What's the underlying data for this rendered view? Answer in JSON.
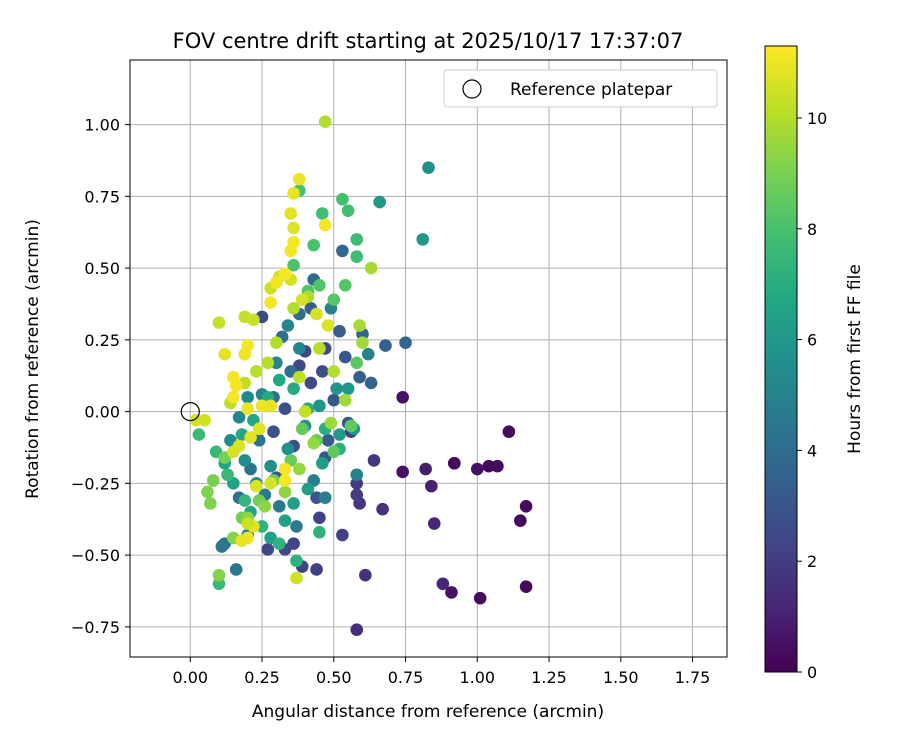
{
  "chart_data": {
    "type": "scatter",
    "title": "FOV centre drift starting at 2025/10/17 17:37:07",
    "xlabel": "Angular distance from reference (arcmin)",
    "ylabel": "Rotation from reference (arcmin)",
    "xlim": [
      -0.21,
      1.87
    ],
    "ylim": [
      -0.855,
      1.225
    ],
    "xticks": [
      "0.00",
      "0.25",
      "0.50",
      "0.75",
      "1.00",
      "1.25",
      "1.50",
      "1.75"
    ],
    "yticks": [
      "1.00",
      "0.75",
      "0.50",
      "0.25",
      "0.00",
      "−0.25",
      "−0.50",
      "−0.75"
    ],
    "grid": true,
    "legend": {
      "label": "Reference platepar",
      "placement": "top-right"
    },
    "reference_point": {
      "x": 0.0,
      "y": 0.0
    },
    "colorbar": {
      "label": "Hours from first FF file",
      "min": 0,
      "max": 11.3,
      "ticks": [
        "0",
        "2",
        "4",
        "6",
        "8",
        "10"
      ],
      "colormap": "viridis"
    },
    "points": [
      [
        0.92,
        -0.18,
        0.3
      ],
      [
        1.01,
        -0.65,
        0.3
      ],
      [
        1.04,
        -0.19,
        0.3
      ],
      [
        1.07,
        -0.19,
        0.3
      ],
      [
        1.11,
        -0.07,
        0.3
      ],
      [
        1.15,
        -0.38,
        0.3
      ],
      [
        1.17,
        -0.33,
        0.3
      ],
      [
        1.17,
        -0.61,
        0.3
      ],
      [
        0.74,
        -0.21,
        0.5
      ],
      [
        0.74,
        0.05,
        0.5
      ],
      [
        0.91,
        -0.63,
        0.5
      ],
      [
        1.0,
        -0.2,
        0.5
      ],
      [
        0.82,
        -0.2,
        0.9
      ],
      [
        0.84,
        -0.26,
        1.0
      ],
      [
        0.85,
        -0.39,
        1.2
      ],
      [
        0.88,
        -0.6,
        1.2
      ],
      [
        0.92,
        -0.18,
        0.3
      ],
      [
        0.58,
        -0.76,
        1.5
      ],
      [
        0.61,
        -0.57,
        1.6
      ],
      [
        0.67,
        -0.34,
        1.6
      ],
      [
        0.59,
        -0.32,
        1.8
      ],
      [
        0.64,
        -0.17,
        1.8
      ],
      [
        0.58,
        -0.25,
        1.9
      ],
      [
        0.58,
        -0.29,
        2.0
      ],
      [
        0.56,
        -0.07,
        2.0
      ],
      [
        0.53,
        -0.43,
        2.1
      ],
      [
        0.45,
        -0.37,
        2.2
      ],
      [
        0.44,
        -0.55,
        2.2
      ],
      [
        0.39,
        -0.54,
        2.2
      ],
      [
        0.36,
        -0.46,
        2.3
      ],
      [
        0.33,
        -0.48,
        2.3
      ],
      [
        0.27,
        -0.48,
        2.4
      ],
      [
        0.4,
        0.21,
        2.4
      ],
      [
        0.47,
        0.22,
        2.5
      ],
      [
        0.25,
        0.33,
        2.5
      ],
      [
        0.38,
        0.16,
        2.6
      ],
      [
        0.42,
        0.1,
        2.6
      ],
      [
        0.46,
        0.14,
        2.7
      ],
      [
        0.33,
        0.01,
        2.7
      ],
      [
        0.29,
        -0.07,
        2.8
      ],
      [
        0.36,
        -0.12,
        2.8
      ],
      [
        0.3,
        -0.23,
        2.9
      ],
      [
        0.44,
        -0.3,
        3.0
      ],
      [
        0.47,
        -0.16,
        3.0
      ],
      [
        0.54,
        0.19,
        3.1
      ],
      [
        0.5,
        0.04,
        3.1
      ],
      [
        0.55,
        -0.04,
        3.2
      ],
      [
        0.48,
        -0.1,
        3.2
      ],
      [
        0.42,
        0.36,
        3.3
      ],
      [
        0.52,
        0.28,
        3.3
      ],
      [
        0.59,
        0.12,
        3.4
      ],
      [
        0.68,
        0.23,
        3.5
      ],
      [
        0.75,
        0.24,
        3.6
      ],
      [
        0.63,
        0.1,
        3.6
      ],
      [
        0.6,
        0.27,
        3.7
      ],
      [
        0.53,
        0.56,
        3.8
      ],
      [
        0.43,
        0.46,
        3.9
      ],
      [
        0.38,
        0.34,
        4.0
      ],
      [
        0.32,
        0.26,
        4.0
      ],
      [
        0.35,
        0.14,
        4.1
      ],
      [
        0.29,
        0.05,
        4.1
      ],
      [
        0.24,
        -0.1,
        4.2
      ],
      [
        0.21,
        -0.2,
        4.3
      ],
      [
        0.17,
        -0.3,
        4.3
      ],
      [
        0.11,
        -0.47,
        4.4
      ],
      [
        0.12,
        -0.46,
        4.4
      ],
      [
        0.16,
        -0.55,
        4.5
      ],
      [
        0.2,
        -0.43,
        4.5
      ],
      [
        0.26,
        -0.29,
        4.6
      ],
      [
        0.31,
        -0.33,
        4.6
      ],
      [
        0.37,
        -0.4,
        4.7
      ],
      [
        0.43,
        -0.24,
        4.8
      ],
      [
        0.47,
        -0.3,
        4.8
      ],
      [
        0.58,
        -0.22,
        4.9
      ],
      [
        0.62,
        0.2,
        5.0
      ],
      [
        0.49,
        0.36,
        5.0
      ],
      [
        0.38,
        0.22,
        5.1
      ],
      [
        0.34,
        0.3,
        5.1
      ],
      [
        0.3,
        0.17,
        5.2
      ],
      [
        0.25,
        0.06,
        5.2
      ],
      [
        0.2,
        0.05,
        5.3
      ],
      [
        0.17,
        -0.02,
        5.3
      ],
      [
        0.14,
        -0.1,
        5.4
      ],
      [
        0.19,
        -0.17,
        5.5
      ],
      [
        0.23,
        -0.25,
        5.5
      ],
      [
        0.28,
        -0.19,
        5.6
      ],
      [
        0.34,
        -0.13,
        5.6
      ],
      [
        0.4,
        -0.05,
        5.7
      ],
      [
        0.45,
        0.02,
        5.8
      ],
      [
        0.51,
        0.08,
        5.8
      ],
      [
        0.57,
        -0.06,
        5.9
      ],
      [
        0.66,
        0.73,
        6.0
      ],
      [
        0.81,
        0.6,
        6.0
      ],
      [
        0.83,
        0.85,
        5.5
      ],
      [
        0.55,
        0.08,
        6.1
      ],
      [
        0.52,
        -0.08,
        6.1
      ],
      [
        0.46,
        -0.18,
        6.2
      ],
      [
        0.41,
        -0.27,
        6.3
      ],
      [
        0.36,
        -0.32,
        6.3
      ],
      [
        0.33,
        -0.38,
        6.4
      ],
      [
        0.28,
        -0.44,
        6.4
      ],
      [
        0.21,
        -0.35,
        6.5
      ],
      [
        0.15,
        -0.25,
        6.5
      ],
      [
        0.12,
        -0.18,
        6.6
      ],
      [
        0.18,
        -0.08,
        6.7
      ],
      [
        0.22,
        -0.03,
        6.7
      ],
      [
        0.27,
        0.05,
        6.8
      ],
      [
        0.31,
        0.11,
        6.8
      ],
      [
        0.36,
        0.08,
        6.9
      ],
      [
        0.41,
        0.01,
        7.0
      ],
      [
        0.47,
        -0.06,
        7.0
      ],
      [
        0.52,
        -0.13,
        7.1
      ],
      [
        0.45,
        -0.42,
        7.2
      ],
      [
        0.37,
        -0.52,
        7.2
      ],
      [
        0.31,
        -0.46,
        7.3
      ],
      [
        0.25,
        -0.4,
        7.3
      ],
      [
        0.19,
        -0.31,
        7.4
      ],
      [
        0.13,
        -0.22,
        7.5
      ],
      [
        0.09,
        -0.14,
        7.5
      ],
      [
        0.03,
        -0.08,
        7.6
      ],
      [
        0.1,
        -0.6,
        7.6
      ],
      [
        0.58,
        0.6,
        7.7
      ],
      [
        0.58,
        0.54,
        7.7
      ],
      [
        0.46,
        0.69,
        7.8
      ],
      [
        0.53,
        0.74,
        7.9
      ],
      [
        0.55,
        0.7,
        7.9
      ],
      [
        0.43,
        0.58,
        8.0
      ],
      [
        0.38,
        0.77,
        8.0
      ],
      [
        0.36,
        0.51,
        8.1
      ],
      [
        0.41,
        0.42,
        8.2
      ],
      [
        0.45,
        0.44,
        8.2
      ],
      [
        0.5,
        0.39,
        8.3
      ],
      [
        0.54,
        0.44,
        8.3
      ],
      [
        0.58,
        0.17,
        8.4
      ],
      [
        0.56,
        -0.05,
        8.5
      ],
      [
        0.5,
        -0.14,
        8.5
      ],
      [
        0.44,
        -0.1,
        8.6
      ],
      [
        0.39,
        -0.06,
        8.6
      ],
      [
        0.35,
        -0.17,
        8.7
      ],
      [
        0.29,
        -0.24,
        8.8
      ],
      [
        0.24,
        -0.31,
        8.8
      ],
      [
        0.18,
        -0.37,
        8.9
      ],
      [
        0.12,
        -0.16,
        8.9
      ],
      [
        0.08,
        -0.24,
        9.0
      ],
      [
        0.06,
        -0.28,
        9.1
      ],
      [
        0.07,
        -0.32,
        9.1
      ],
      [
        0.1,
        -0.57,
        9.2
      ],
      [
        0.15,
        -0.44,
        9.2
      ],
      [
        0.2,
        -0.37,
        9.3
      ],
      [
        0.26,
        -0.33,
        9.4
      ],
      [
        0.33,
        -0.28,
        9.4
      ],
      [
        0.38,
        -0.2,
        9.5
      ],
      [
        0.43,
        -0.11,
        9.5
      ],
      [
        0.49,
        -0.04,
        9.6
      ],
      [
        0.54,
        0.04,
        9.7
      ],
      [
        0.6,
        0.24,
        9.7
      ],
      [
        0.59,
        0.3,
        9.8
      ],
      [
        0.63,
        0.5,
        9.8
      ],
      [
        0.47,
        1.01,
        10.0
      ],
      [
        0.41,
        0.4,
        9.9
      ],
      [
        0.36,
        0.36,
        10.0
      ],
      [
        0.3,
        0.24,
        10.0
      ],
      [
        0.27,
        0.17,
        10.1
      ],
      [
        0.23,
        0.14,
        10.1
      ],
      [
        0.19,
        0.1,
        10.2
      ],
      [
        0.14,
        0.03,
        10.2
      ],
      [
        0.1,
        0.31,
        10.3
      ],
      [
        0.19,
        0.33,
        10.3
      ],
      [
        0.22,
        0.32,
        10.4
      ],
      [
        0.28,
        0.43,
        10.4
      ],
      [
        0.31,
        0.47,
        10.5
      ],
      [
        0.35,
        0.46,
        10.5
      ],
      [
        0.39,
        0.39,
        10.6
      ],
      [
        0.44,
        0.34,
        10.6
      ],
      [
        0.48,
        0.3,
        10.7
      ],
      [
        0.36,
        0.64,
        10.7
      ],
      [
        0.35,
        0.69,
        10.8
      ],
      [
        0.36,
        0.76,
        10.9
      ],
      [
        0.38,
        0.81,
        11.0
      ],
      [
        0.47,
        0.65,
        11.1
      ],
      [
        0.36,
        0.59,
        11.2
      ],
      [
        0.35,
        0.56,
        11.2
      ],
      [
        0.33,
        0.48,
        11.2
      ],
      [
        0.3,
        0.45,
        11.1
      ],
      [
        0.28,
        0.38,
        11.1
      ],
      [
        0.2,
        0.23,
        11.1
      ],
      [
        0.19,
        0.2,
        11.0
      ],
      [
        0.12,
        0.2,
        10.9
      ],
      [
        0.15,
        0.12,
        11.2
      ],
      [
        0.16,
        0.09,
        11.2
      ],
      [
        0.15,
        0.05,
        11.1
      ],
      [
        0.2,
        0.01,
        11.0
      ],
      [
        0.25,
        0.02,
        11.0
      ],
      [
        0.28,
        0.02,
        10.9
      ],
      [
        0.24,
        -0.06,
        10.8
      ],
      [
        0.21,
        -0.09,
        10.8
      ],
      [
        0.17,
        -0.12,
        10.7
      ],
      [
        0.15,
        -0.14,
        10.6
      ],
      [
        0.02,
        -0.03,
        10.6
      ],
      [
        0.05,
        -0.03,
        10.5
      ],
      [
        0.2,
        -0.44,
        11.0
      ],
      [
        0.18,
        -0.45,
        10.9
      ],
      [
        0.22,
        -0.4,
        10.8
      ],
      [
        0.23,
        -0.26,
        10.7
      ],
      [
        0.28,
        -0.25,
        10.6
      ],
      [
        0.33,
        -0.2,
        11.2
      ],
      [
        0.33,
        -0.24,
        11.2
      ],
      [
        0.37,
        -0.58,
        10.5
      ],
      [
        0.2,
        -0.39,
        10.4
      ],
      [
        0.4,
        0.0,
        10.3
      ],
      [
        0.38,
        0.12,
        10.2
      ],
      [
        0.45,
        0.22,
        10.1
      ],
      [
        0.5,
        0.14,
        10.0
      ]
    ]
  }
}
